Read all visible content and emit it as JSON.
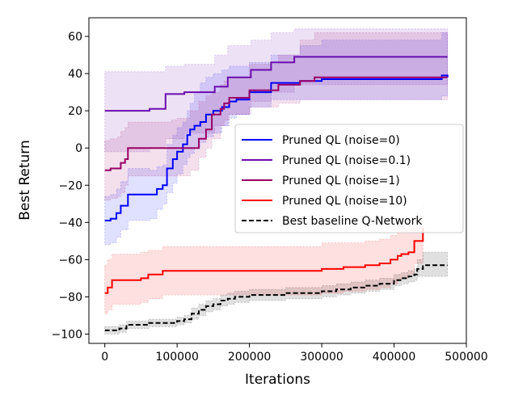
{
  "chart_data": {
    "type": "line",
    "title": "",
    "xlabel": "Iterations",
    "ylabel": "Best Return",
    "xlim": [
      -22000,
      500000
    ],
    "ylim": [
      -105,
      70
    ],
    "xticks": [
      0,
      100000,
      200000,
      300000,
      400000,
      500000
    ],
    "xtick_labels": [
      "0",
      "100000",
      "200000",
      "300000",
      "400000",
      "500000"
    ],
    "yticks": [
      -100,
      -80,
      -60,
      -40,
      -20,
      0,
      20,
      40,
      60
    ],
    "ytick_labels": [
      "−100",
      "−80",
      "−60",
      "−40",
      "−20",
      "0",
      "20",
      "40",
      "60"
    ],
    "legend_position": "center-right",
    "series": [
      {
        "name": "Pruned QL (noise=0)",
        "color": "#0000ff",
        "linestyle": "solid",
        "x": [
          0,
          8000,
          16000,
          22000,
          32000,
          62000,
          72000,
          80000,
          86000,
          94000,
          100000,
          108000,
          114000,
          118000,
          124000,
          132000,
          140000,
          150000,
          162000,
          172000,
          182000,
          200000,
          230000,
          270000,
          300000,
          400000,
          460000,
          466000,
          474000
        ],
        "y": [
          -39,
          -38,
          -35,
          -31,
          -25,
          -25,
          -22,
          -20,
          -11,
          -6,
          -2,
          2,
          7,
          10,
          12,
          14,
          18,
          20,
          22,
          25,
          26,
          30,
          35,
          36,
          37,
          37,
          37,
          39,
          38
        ],
        "band_lower": [
          -52,
          -51,
          -48,
          -44,
          -39,
          -38,
          -33,
          -30,
          -24,
          -19,
          -14,
          -9,
          -5,
          -3,
          0,
          3,
          6,
          8,
          12,
          16,
          18,
          22,
          26,
          26,
          26,
          26,
          26,
          28,
          28
        ],
        "band_upper": [
          -26,
          -25,
          -22,
          -18,
          -11,
          -12,
          -10,
          -9,
          2,
          7,
          11,
          14,
          20,
          24,
          30,
          35,
          38,
          40,
          42,
          44,
          44,
          46,
          50,
          55,
          58,
          58,
          58,
          62,
          62
        ]
      },
      {
        "name": "Pruned QL (noise=0.1)",
        "color": "#6a0dad",
        "linestyle": "solid",
        "x": [
          0,
          60000,
          62000,
          82000,
          84000,
          108000,
          110000,
          150000,
          152000,
          168000,
          170000,
          200000,
          202000,
          228000,
          230000,
          260000,
          262000,
          474000
        ],
        "y": [
          20,
          20,
          21,
          21,
          29,
          29,
          30,
          30,
          33,
          33,
          38,
          38,
          42,
          42,
          46,
          46,
          49,
          49
        ],
        "band_lower": [
          -2,
          -2,
          0,
          0,
          5,
          5,
          8,
          8,
          12,
          12,
          18,
          18,
          25,
          25,
          30,
          30,
          34,
          34
        ],
        "band_upper": [
          41,
          41,
          41,
          41,
          44,
          44,
          45,
          45,
          50,
          50,
          55,
          55,
          58,
          58,
          62,
          62,
          64,
          64
        ]
      },
      {
        "name": "Pruned QL (noise=1)",
        "color": "#990066",
        "linestyle": "solid",
        "x": [
          0,
          8000,
          18000,
          22000,
          28000,
          32000,
          80000,
          92000,
          100000,
          118000,
          130000,
          140000,
          148000,
          160000,
          165000,
          172000,
          200000,
          240000,
          270000,
          290000,
          474000
        ],
        "y": [
          -12,
          -11,
          -11,
          -8,
          -6,
          0,
          0,
          0,
          0,
          0,
          5,
          10,
          18,
          21,
          24,
          27,
          31,
          34,
          36,
          38,
          38
        ],
        "band_lower": [
          -28,
          -27,
          -26,
          -24,
          -20,
          -15,
          -15,
          -15,
          -15,
          -12,
          -5,
          0,
          5,
          12,
          15,
          18,
          22,
          24,
          26,
          26,
          26
        ],
        "band_upper": [
          4,
          5,
          6,
          9,
          11,
          14,
          14,
          15,
          16,
          20,
          25,
          28,
          30,
          34,
          36,
          38,
          45,
          50,
          58,
          62,
          62
        ]
      },
      {
        "name": "Pruned QL (noise=10)",
        "color": "#ff0000",
        "linestyle": "solid",
        "x": [
          0,
          4000,
          10000,
          50000,
          60000,
          80000,
          300000,
          330000,
          360000,
          380000,
          395000,
          405000,
          410000,
          420000,
          428000,
          440000
        ],
        "y": [
          -78,
          -75,
          -71,
          -70,
          -68,
          -66,
          -65,
          -64,
          -63,
          -62,
          -60,
          -58,
          -57,
          -56,
          -50,
          -43
        ],
        "band_lower": [
          -89,
          -87,
          -84,
          -83,
          -81,
          -79,
          -78,
          -77,
          -76,
          -75,
          -73,
          -71,
          -70,
          -68,
          -62,
          -55
        ],
        "band_upper": [
          -63,
          -60,
          -57,
          -56,
          -55,
          -53,
          -51,
          -51,
          -50,
          -49,
          -47,
          -45,
          -44,
          -43,
          -37,
          -30
        ]
      },
      {
        "name": "Best baseline Q-Network",
        "color": "#000000",
        "linestyle": "dashed",
        "x": [
          0,
          20000,
          30000,
          60000,
          100000,
          110000,
          120000,
          130000,
          140000,
          150000,
          160000,
          170000,
          180000,
          190000,
          200000,
          230000,
          250000,
          300000,
          320000,
          340000,
          360000,
          380000,
          400000,
          410000,
          420000,
          428000,
          432000,
          440000,
          450000,
          474000
        ],
        "y": [
          -98,
          -97,
          -95,
          -94,
          -93,
          -92,
          -89,
          -87,
          -85,
          -84,
          -82,
          -81,
          -80,
          -80,
          -79,
          -79,
          -78,
          -77,
          -76,
          -75,
          -74,
          -73,
          -71,
          -70,
          -69,
          -68,
          -65,
          -63,
          -63,
          -63
        ],
        "band_lower": [
          -100,
          -99,
          -97,
          -96,
          -95,
          -94,
          -92,
          -90,
          -88,
          -87,
          -85,
          -84,
          -83,
          -83,
          -82,
          -82,
          -81,
          -80,
          -79,
          -78,
          -77,
          -76,
          -74,
          -73,
          -72,
          -71,
          -69,
          -69,
          -69,
          -69
        ],
        "band_upper": [
          -96,
          -95,
          -93,
          -92,
          -91,
          -90,
          -86,
          -84,
          -82,
          -81,
          -79,
          -78,
          -77,
          -77,
          -76,
          -76,
          -75,
          -74,
          -73,
          -72,
          -71,
          -70,
          -68,
          -67,
          -66,
          -65,
          -60,
          -56,
          -56,
          -56
        ]
      }
    ]
  }
}
